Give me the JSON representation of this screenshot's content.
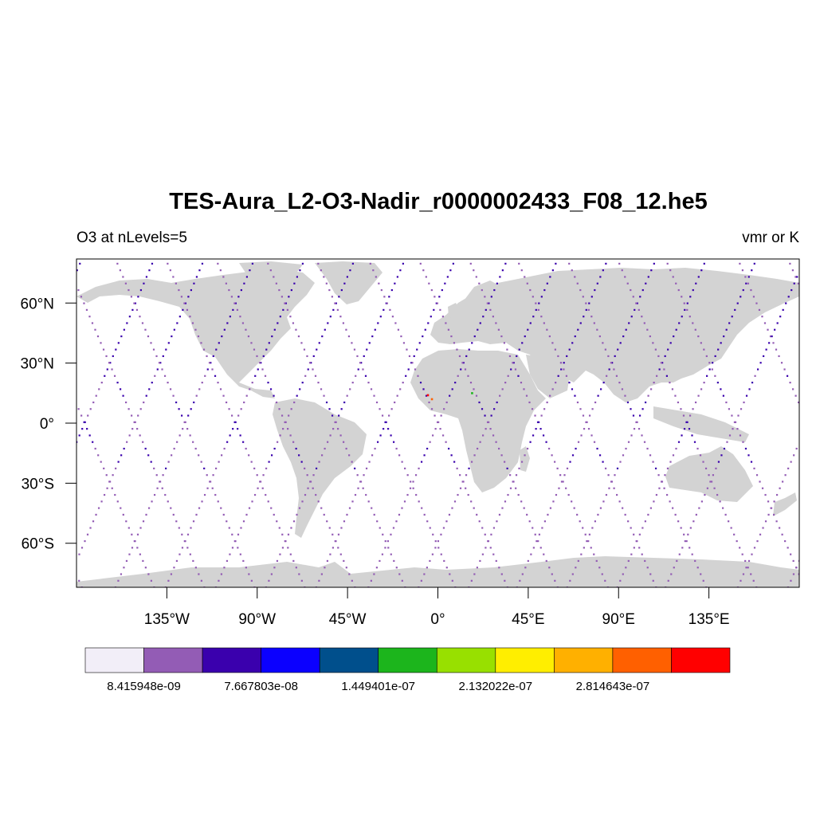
{
  "header": {
    "title": "TES-Aura_L2-O3-Nadir_r0000002433_F08_12.he5",
    "left_label": "O3 at nLevels=5",
    "right_label": "vmr or K"
  },
  "map": {
    "projection": "cylindrical-equidistant",
    "lon_range": [
      -180,
      180
    ],
    "lat_range": [
      -82,
      82
    ],
    "land_color": "#d3d3d3",
    "ocean_color": "#ffffff",
    "x_ticks": [
      {
        "value": -135,
        "label": "135°W"
      },
      {
        "value": -90,
        "label": "90°W"
      },
      {
        "value": -45,
        "label": "45°W"
      },
      {
        "value": 0,
        "label": "0°"
      },
      {
        "value": 45,
        "label": "45°E"
      },
      {
        "value": 90,
        "label": "90°E"
      },
      {
        "value": 135,
        "label": "135°E"
      }
    ],
    "y_ticks": [
      {
        "value": 60,
        "label": "60°N"
      },
      {
        "value": 30,
        "label": "30°N"
      },
      {
        "value": 0,
        "label": "0°"
      },
      {
        "value": -30,
        "label": "30°S"
      },
      {
        "value": -60,
        "label": "60°S"
      }
    ]
  },
  "chart_data": {
    "type": "scatter",
    "title": "TES-Aura_L2-O3-Nadir_r0000002433_F08_12.he5",
    "variable": "O3 at nLevels=5",
    "units": "vmr or K",
    "orbit_tracks": {
      "equator_crossing_lon": [
        -176,
        -151,
        -126,
        -101,
        -76,
        -51,
        -26,
        0,
        25,
        50,
        74,
        99,
        124,
        148
      ],
      "lat_range": [
        -82,
        82
      ],
      "sample_step_deg": 3.3
    },
    "special_points": [
      {
        "lon": -5,
        "lat": 14,
        "level": "high",
        "color": "#ff0000"
      },
      {
        "lon": 17,
        "lat": 15,
        "level": "mid",
        "color": "#1cb51c"
      },
      {
        "lon": -3,
        "lat": 12,
        "level": "mid",
        "color": "#ff6000"
      }
    ],
    "colorbar": {
      "colors": [
        "#f2eef8",
        "#935cb5",
        "#3a00ad",
        "#0b00ff",
        "#004f8c",
        "#1cb51c",
        "#98e000",
        "#ffee00",
        "#ffb000",
        "#ff6000",
        "#ff0000"
      ],
      "labels": [
        "8.415948e-09",
        "7.667803e-08",
        "1.449401e-07",
        "2.132022e-07",
        "2.814643e-07"
      ]
    }
  }
}
